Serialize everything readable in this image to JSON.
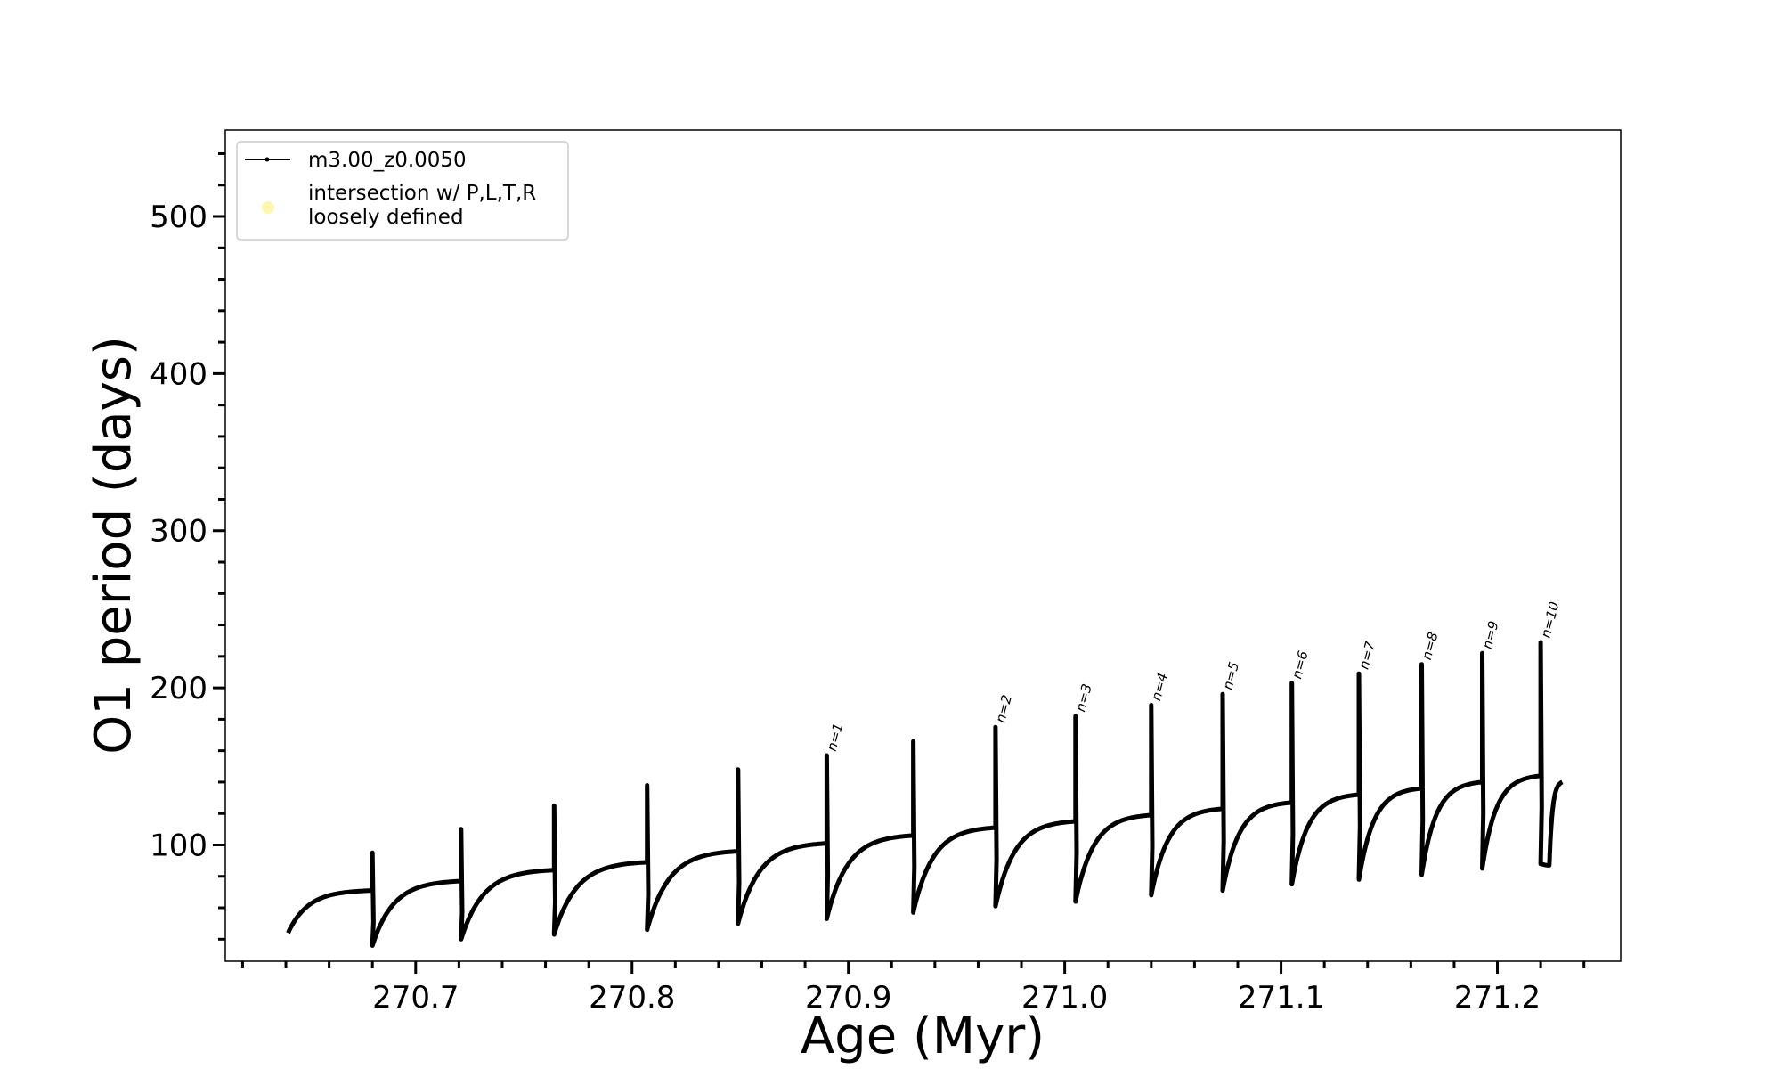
{
  "chart_data": {
    "type": "line",
    "xlabel": "Age (Myr)",
    "ylabel": "O1 period (days)",
    "xlim": [
      270.612,
      271.257
    ],
    "ylim": [
      26,
      555
    ],
    "x_ticks": [
      270.7,
      270.8,
      270.9,
      271.0,
      271.1,
      271.2
    ],
    "x_tick_labels": [
      "270.7",
      "270.8",
      "270.9",
      "271.0",
      "271.1",
      "271.2"
    ],
    "y_ticks": [
      100,
      200,
      300,
      400,
      500
    ],
    "y_tick_labels": [
      "100",
      "200",
      "300",
      "400",
      "500"
    ],
    "x_minor_step": 0.02,
    "y_minor_step": 20,
    "grid": false,
    "legend_placement": "top-left",
    "legend": [
      {
        "label": "m3.00_z0.0050",
        "marker": "line-with-dot",
        "color": "#000000"
      },
      {
        "label_lines": [
          "intersection w/ P,L,T,R",
          "loosely defined"
        ],
        "marker": "circle",
        "color": "#fff7b0"
      }
    ],
    "series": [
      {
        "name": "m3.00_z0.0050",
        "color": "#000000",
        "pulses": [
          {
            "t0": 270.641,
            "t1": 270.68,
            "start": 44,
            "end": 71,
            "peak": 95,
            "min": 34,
            "min_t": 270.684
          },
          {
            "t0": 270.68,
            "t1": 270.721,
            "start": 36,
            "end": 77,
            "peak": 110,
            "min": 38,
            "min_t": 270.725
          },
          {
            "t0": 270.721,
            "t1": 270.764,
            "start": 40,
            "end": 84,
            "peak": 125,
            "min": 42,
            "min_t": 270.768
          },
          {
            "t0": 270.764,
            "t1": 270.807,
            "start": 43,
            "end": 89,
            "peak": 138,
            "min": 45,
            "min_t": 270.811
          },
          {
            "t0": 270.807,
            "t1": 270.849,
            "start": 46,
            "end": 96,
            "peak": 148,
            "min": 49,
            "min_t": 270.853
          },
          {
            "t0": 270.849,
            "t1": 270.89,
            "start": 50,
            "end": 101,
            "peak": 157,
            "min": 52,
            "min_t": 270.894,
            "label": "n=1"
          },
          {
            "t0": 270.89,
            "t1": 270.93,
            "start": 53,
            "end": 106,
            "peak": 166,
            "min": 56,
            "min_t": 270.934
          },
          {
            "t0": 270.93,
            "t1": 270.968,
            "start": 57,
            "end": 111,
            "peak": 175,
            "min": 60,
            "min_t": 270.972,
            "label": "n=2"
          },
          {
            "t0": 270.968,
            "t1": 271.005,
            "start": 61,
            "end": 115,
            "peak": 182,
            "min": 63,
            "min_t": 271.009,
            "label": "n=3"
          },
          {
            "t0": 271.005,
            "t1": 271.04,
            "start": 64,
            "end": 119,
            "peak": 189,
            "min": 67,
            "min_t": 271.044,
            "label": "n=4"
          },
          {
            "t0": 271.04,
            "t1": 271.073,
            "start": 68,
            "end": 123,
            "peak": 196,
            "min": 70,
            "min_t": 271.077,
            "label": "n=5"
          },
          {
            "t0": 271.073,
            "t1": 271.105,
            "start": 71,
            "end": 127,
            "peak": 203,
            "min": 74,
            "min_t": 271.109,
            "label": "n=6"
          },
          {
            "t0": 271.105,
            "t1": 271.136,
            "start": 75,
            "end": 132,
            "peak": 209,
            "min": 77,
            "min_t": 271.14,
            "label": "n=7"
          },
          {
            "t0": 271.136,
            "t1": 271.165,
            "start": 78,
            "end": 136,
            "peak": 215,
            "min": 80,
            "min_t": 271.169,
            "label": "n=8"
          },
          {
            "t0": 271.165,
            "t1": 271.193,
            "start": 81,
            "end": 140,
            "peak": 222,
            "min": 84,
            "min_t": 271.197,
            "label": "n=9"
          },
          {
            "t0": 271.193,
            "t1": 271.22,
            "start": 85,
            "end": 144,
            "peak": 229,
            "min": 87,
            "min_t": 271.224,
            "label": "n=10"
          },
          {
            "t0": 271.22,
            "t1": 271.23,
            "start": 88,
            "end": 140,
            "peak": null,
            "min": 87,
            "min_t": 271.224
          }
        ]
      }
    ]
  }
}
